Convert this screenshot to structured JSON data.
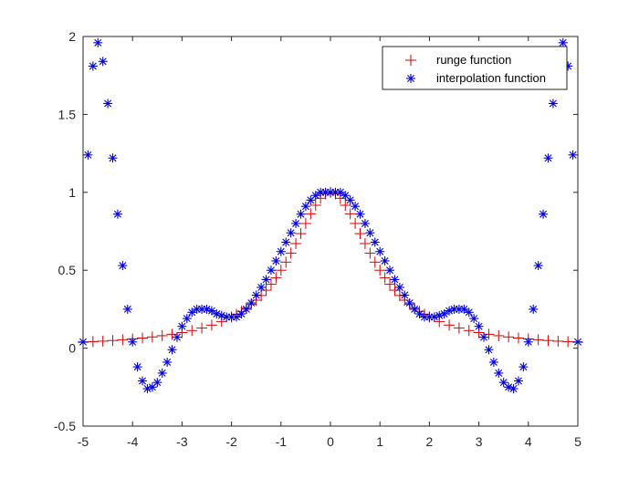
{
  "chart_data": {
    "type": "scatter",
    "title": "",
    "xlabel": "",
    "ylabel": "",
    "xlim": [
      -5,
      5
    ],
    "ylim": [
      -0.5,
      2
    ],
    "x_ticks": [
      -5,
      -4,
      -3,
      -2,
      -1,
      0,
      1,
      2,
      3,
      4,
      5
    ],
    "y_ticks": [
      -0.5,
      0,
      0.5,
      1,
      1.5,
      2
    ],
    "x_tick_labels": [
      "-5",
      "-4",
      "-3",
      "-2",
      "-1",
      "0",
      "1",
      "2",
      "3",
      "4",
      "5"
    ],
    "y_tick_labels": [
      "-0.5",
      "0",
      "0.5",
      "1",
      "1.5",
      "2"
    ],
    "grid": false,
    "legend_position": "top-right",
    "series": [
      {
        "name": "runge function",
        "marker": "plus",
        "color": "#dd0000",
        "x": [
          -5.0,
          -4.8,
          -4.6,
          -4.4,
          -4.2,
          -4.0,
          -3.8,
          -3.6,
          -3.4,
          -3.2,
          -3.0,
          -2.8,
          -2.6,
          -2.4,
          -2.2,
          -2.0,
          -1.9,
          -1.8,
          -1.7,
          -1.6,
          -1.5,
          -1.4,
          -1.3,
          -1.2,
          -1.1,
          -1.0,
          -0.9,
          -0.8,
          -0.7,
          -0.6,
          -0.5,
          -0.4,
          -0.3,
          -0.2,
          -0.1,
          0.0,
          0.1,
          0.2,
          0.3,
          0.4,
          0.5,
          0.6,
          0.7,
          0.8,
          0.9,
          1.0,
          1.1,
          1.2,
          1.3,
          1.4,
          1.5,
          1.6,
          1.7,
          1.8,
          1.9,
          2.0,
          2.2,
          2.4,
          2.6,
          2.8,
          3.0,
          3.2,
          3.4,
          3.6,
          3.8,
          4.0,
          4.2,
          4.4,
          4.6,
          4.8,
          5.0
        ],
        "y": [
          0.038,
          0.042,
          0.045,
          0.049,
          0.054,
          0.059,
          0.065,
          0.072,
          0.08,
          0.089,
          0.1,
          0.113,
          0.129,
          0.148,
          0.171,
          0.2,
          0.217,
          0.236,
          0.257,
          0.281,
          0.308,
          0.338,
          0.372,
          0.41,
          0.452,
          0.5,
          0.552,
          0.61,
          0.671,
          0.735,
          0.8,
          0.862,
          0.917,
          0.962,
          0.99,
          1.0,
          0.99,
          0.962,
          0.917,
          0.862,
          0.8,
          0.735,
          0.671,
          0.61,
          0.552,
          0.5,
          0.452,
          0.41,
          0.372,
          0.338,
          0.308,
          0.281,
          0.257,
          0.236,
          0.217,
          0.2,
          0.171,
          0.148,
          0.129,
          0.113,
          0.1,
          0.089,
          0.08,
          0.072,
          0.065,
          0.059,
          0.054,
          0.049,
          0.045,
          0.042,
          0.038
        ]
      },
      {
        "name": "interpolation function",
        "marker": "asterisk",
        "color": "#0000dd",
        "x": [
          -5.0,
          -4.9,
          -4.8,
          -4.7,
          -4.6,
          -4.5,
          -4.4,
          -4.3,
          -4.2,
          -4.1,
          -4.0,
          -3.9,
          -3.8,
          -3.7,
          -3.6,
          -3.5,
          -3.4,
          -3.3,
          -3.2,
          -3.1,
          -3.0,
          -2.9,
          -2.8,
          -2.7,
          -2.6,
          -2.5,
          -2.4,
          -2.3,
          -2.2,
          -2.1,
          -2.0,
          -1.9,
          -1.8,
          -1.7,
          -1.6,
          -1.5,
          -1.4,
          -1.3,
          -1.2,
          -1.1,
          -1.0,
          -0.9,
          -0.8,
          -0.7,
          -0.6,
          -0.5,
          -0.4,
          -0.3,
          -0.2,
          -0.1,
          0.0,
          0.1,
          0.2,
          0.3,
          0.4,
          0.5,
          0.6,
          0.7,
          0.8,
          0.9,
          1.0,
          1.1,
          1.2,
          1.3,
          1.4,
          1.5,
          1.6,
          1.7,
          1.8,
          1.9,
          2.0,
          2.1,
          2.2,
          2.3,
          2.4,
          2.5,
          2.6,
          2.7,
          2.8,
          2.9,
          3.0,
          3.1,
          3.2,
          3.3,
          3.4,
          3.5,
          3.6,
          3.7,
          3.8,
          3.9,
          4.0,
          4.1,
          4.2,
          4.3,
          4.4,
          4.5,
          4.6,
          4.7,
          4.8,
          4.9,
          5.0
        ],
        "y": [
          0.04,
          1.24,
          1.81,
          1.96,
          1.84,
          1.57,
          1.22,
          0.86,
          0.53,
          0.25,
          0.04,
          -0.12,
          -0.21,
          -0.26,
          -0.25,
          -0.22,
          -0.16,
          -0.09,
          -0.01,
          0.07,
          0.14,
          0.19,
          0.23,
          0.25,
          0.25,
          0.25,
          0.24,
          0.22,
          0.21,
          0.2,
          0.2,
          0.2,
          0.22,
          0.25,
          0.29,
          0.34,
          0.39,
          0.44,
          0.5,
          0.56,
          0.62,
          0.68,
          0.74,
          0.8,
          0.86,
          0.91,
          0.95,
          0.98,
          1.0,
          1.0,
          1.0,
          1.0,
          1.0,
          0.98,
          0.95,
          0.91,
          0.86,
          0.8,
          0.74,
          0.68,
          0.62,
          0.56,
          0.5,
          0.44,
          0.39,
          0.34,
          0.29,
          0.25,
          0.22,
          0.2,
          0.2,
          0.2,
          0.21,
          0.22,
          0.24,
          0.25,
          0.25,
          0.25,
          0.23,
          0.19,
          0.14,
          0.07,
          -0.01,
          -0.09,
          -0.16,
          -0.22,
          -0.25,
          -0.26,
          -0.21,
          -0.12,
          0.04,
          0.25,
          0.53,
          0.86,
          1.22,
          1.57,
          1.84,
          1.96,
          1.81,
          1.24,
          0.04
        ]
      }
    ]
  }
}
